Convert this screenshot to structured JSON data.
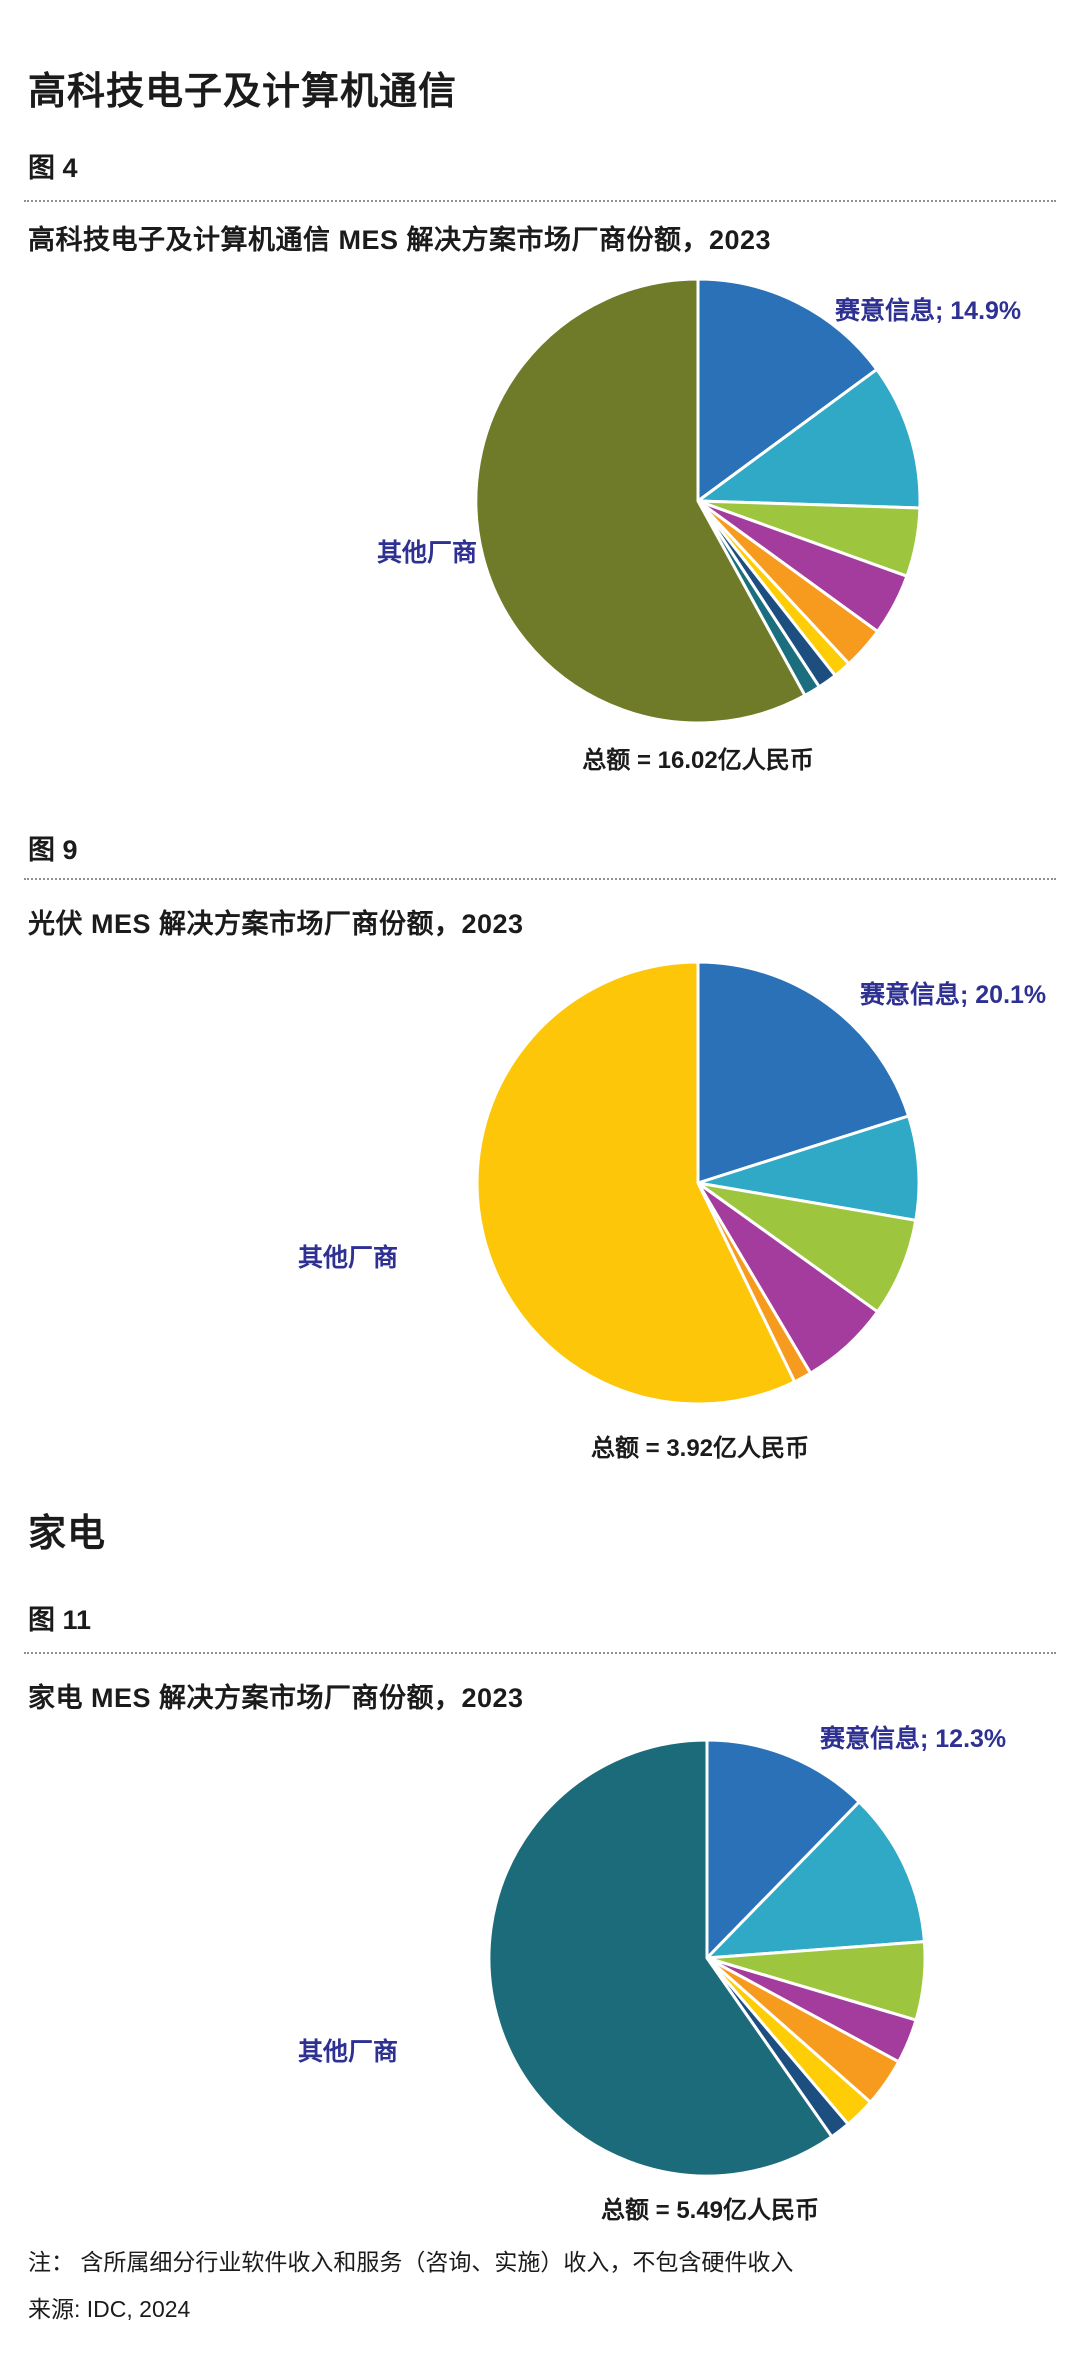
{
  "page": {
    "section1_heading": "高科技电子及计算机通信",
    "section2_heading": "家电",
    "note": "注： 含所属细分行业软件收入和服务（咨询、实施）收入，不包含硬件收入",
    "source": "来源: IDC, 2024"
  },
  "label_color": "#2E3192",
  "chart_data": [
    {
      "type": "pie",
      "figure_label": "图 4",
      "title": "高科技电子及计算机通信 MES 解决方案市场厂商份额，2023",
      "callout": "赛意信息; 14.9%",
      "other_label": "其他厂商",
      "total_label": "总额 = 16.02亿人民币",
      "total_value": "16.02亿人民币",
      "start_angle_deg": 0,
      "direction": "clockwise",
      "slices": [
        {
          "label": "赛意信息",
          "value_pct": 14.9,
          "color": "#2A71B7"
        },
        {
          "label": "",
          "value_pct": 10.6,
          "color": "#2FA9C6"
        },
        {
          "label": "",
          "value_pct": 5.0,
          "color": "#9DC63E"
        },
        {
          "label": "",
          "value_pct": 4.5,
          "color": "#A43C9D"
        },
        {
          "label": "",
          "value_pct": 3.1,
          "color": "#F79B1F"
        },
        {
          "label": "",
          "value_pct": 1.3,
          "color": "#FFCD05"
        },
        {
          "label": "",
          "value_pct": 1.4,
          "color": "#1C4E80"
        },
        {
          "label": "",
          "value_pct": 1.2,
          "color": "#1A6E7E"
        },
        {
          "label": "其他厂商",
          "value_pct": 58.0,
          "color": "#6F7B28"
        }
      ]
    },
    {
      "type": "pie",
      "figure_label": "图 9",
      "title": "光伏 MES 解决方案市场厂商份额，2023",
      "callout": "赛意信息; 20.1%",
      "other_label": "其他厂商",
      "total_label": "总额 = 3.92亿人民币",
      "total_value": "3.92亿人民币",
      "start_angle_deg": 0,
      "direction": "clockwise",
      "slices": [
        {
          "label": "赛意信息",
          "value_pct": 20.1,
          "color": "#2A71B7"
        },
        {
          "label": "",
          "value_pct": 7.6,
          "color": "#2FA9C6"
        },
        {
          "label": "",
          "value_pct": 7.2,
          "color": "#9DC63E"
        },
        {
          "label": "",
          "value_pct": 6.6,
          "color": "#A43C9D"
        },
        {
          "label": "",
          "value_pct": 1.3,
          "color": "#F79B1F"
        },
        {
          "label": "其他厂商",
          "value_pct": 57.2,
          "color": "#FDC608"
        }
      ]
    },
    {
      "type": "pie",
      "figure_label": "图 11",
      "title": "家电 MES 解决方案市场厂商份额，2023",
      "callout": "赛意信息; 12.3%",
      "other_label": "其他厂商",
      "total_label": "总额 = 5.49亿人民币",
      "total_value": "5.49亿人民币",
      "start_angle_deg": 0,
      "direction": "clockwise",
      "slices": [
        {
          "label": "赛意信息",
          "value_pct": 12.3,
          "color": "#2A71B7"
        },
        {
          "label": "",
          "value_pct": 11.5,
          "color": "#2FA9C6"
        },
        {
          "label": "",
          "value_pct": 5.8,
          "color": "#9DC63E"
        },
        {
          "label": "",
          "value_pct": 3.3,
          "color": "#A43C9D"
        },
        {
          "label": "",
          "value_pct": 3.6,
          "color": "#F79B1F"
        },
        {
          "label": "",
          "value_pct": 2.3,
          "color": "#FFCD05"
        },
        {
          "label": "",
          "value_pct": 1.5,
          "color": "#1C4E80"
        },
        {
          "label": "其他厂商",
          "value_pct": 59.7,
          "color": "#1C6B7A"
        }
      ]
    }
  ]
}
